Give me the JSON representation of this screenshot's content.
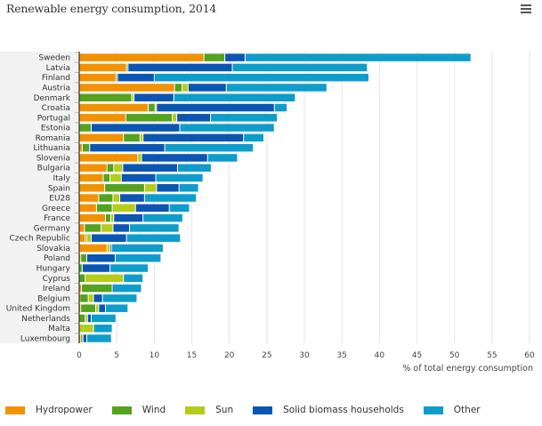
{
  "header": {
    "title": "Renewable energy consumption, 2014",
    "menu_icon": "hamburger-menu-icon"
  },
  "chart_data": {
    "type": "bar",
    "orientation": "horizontal",
    "stacked": true,
    "title": "Renewable energy consumption, 2014",
    "xlabel": "% of total energy consumption",
    "ylabel": "",
    "xlim": [
      0,
      60
    ],
    "xticks": [
      0,
      5,
      10,
      15,
      20,
      25,
      30,
      35,
      40,
      45,
      50,
      55,
      60
    ],
    "grid": true,
    "legend_position": "bottom",
    "categories": [
      "Sweden",
      "Latvia",
      "Finland",
      "Austria",
      "Denmark",
      "Croatia",
      "Portugal",
      "Estonia",
      "Romania",
      "Lithuania",
      "Slovenia",
      "Bulgaria",
      "Italy",
      "Spain",
      "EU28",
      "Greece",
      "France",
      "Germany",
      "Czech Republic",
      "Slovakia",
      "Poland",
      "Hungary",
      "Cyprus",
      "Ireland",
      "Belgium",
      "United Kingdom",
      "Netherlands",
      "Malta",
      "Luxembourg"
    ],
    "series": [
      {
        "name": "Hydropower",
        "color": "#F39200",
        "values": [
          16.6,
          6.3,
          4.9,
          12.7,
          0.0,
          9.2,
          6.2,
          0.0,
          5.9,
          0.4,
          7.8,
          3.7,
          3.2,
          3.4,
          2.6,
          2.3,
          3.5,
          0.7,
          0.8,
          3.7,
          0.2,
          0.0,
          0.0,
          0.3,
          0.1,
          0.2,
          0.0,
          0.0,
          0.2
        ]
      },
      {
        "name": "Wind",
        "color": "#55A21E",
        "values": [
          2.8,
          0.2,
          0.2,
          1.0,
          7.0,
          0.9,
          6.2,
          1.6,
          2.2,
          1.0,
          0.0,
          0.9,
          0.9,
          5.3,
          1.9,
          2.1,
          0.7,
          2.2,
          0.2,
          0.0,
          0.8,
          0.4,
          0.8,
          4.1,
          1.1,
          2.0,
          0.8,
          0.0,
          0.1
        ]
      },
      {
        "name": "Sun",
        "color": "#B5CC1A",
        "values": [
          0.0,
          0.0,
          0.0,
          0.8,
          0.3,
          0.2,
          0.6,
          0.0,
          0.4,
          0.0,
          0.5,
          1.2,
          1.5,
          1.6,
          0.9,
          3.1,
          0.4,
          1.6,
          0.6,
          0.4,
          0.0,
          0.0,
          5.1,
          0.0,
          0.7,
          0.4,
          0.3,
          1.9,
          0.2
        ]
      },
      {
        "name": "Solid biomass households",
        "color": "#0C56B3",
        "values": [
          2.7,
          13.9,
          4.9,
          5.1,
          5.3,
          15.7,
          4.5,
          11.8,
          13.4,
          10.0,
          8.8,
          7.3,
          4.6,
          3.0,
          3.3,
          4.5,
          3.9,
          2.2,
          4.7,
          0.2,
          3.8,
          3.7,
          0.0,
          0.1,
          1.2,
          0.9,
          0.5,
          0.0,
          0.5
        ]
      },
      {
        "name": "Other",
        "color": "#0E9DCB",
        "values": [
          30.1,
          18.0,
          28.6,
          13.4,
          16.2,
          1.7,
          8.9,
          12.6,
          2.7,
          11.8,
          4.0,
          4.5,
          6.3,
          2.6,
          6.9,
          2.7,
          5.3,
          6.6,
          7.2,
          6.9,
          6.1,
          5.1,
          2.6,
          3.8,
          4.6,
          3.0,
          3.3,
          2.5,
          3.3
        ]
      }
    ]
  },
  "legend": {
    "items": [
      {
        "label": "Hydropower",
        "color": "#F39200"
      },
      {
        "label": "Wind",
        "color": "#55A21E"
      },
      {
        "label": "Sun",
        "color": "#B5CC1A"
      },
      {
        "label": "Solid biomass households",
        "color": "#0C56B3"
      },
      {
        "label": "Other",
        "color": "#0E9DCB"
      }
    ]
  }
}
